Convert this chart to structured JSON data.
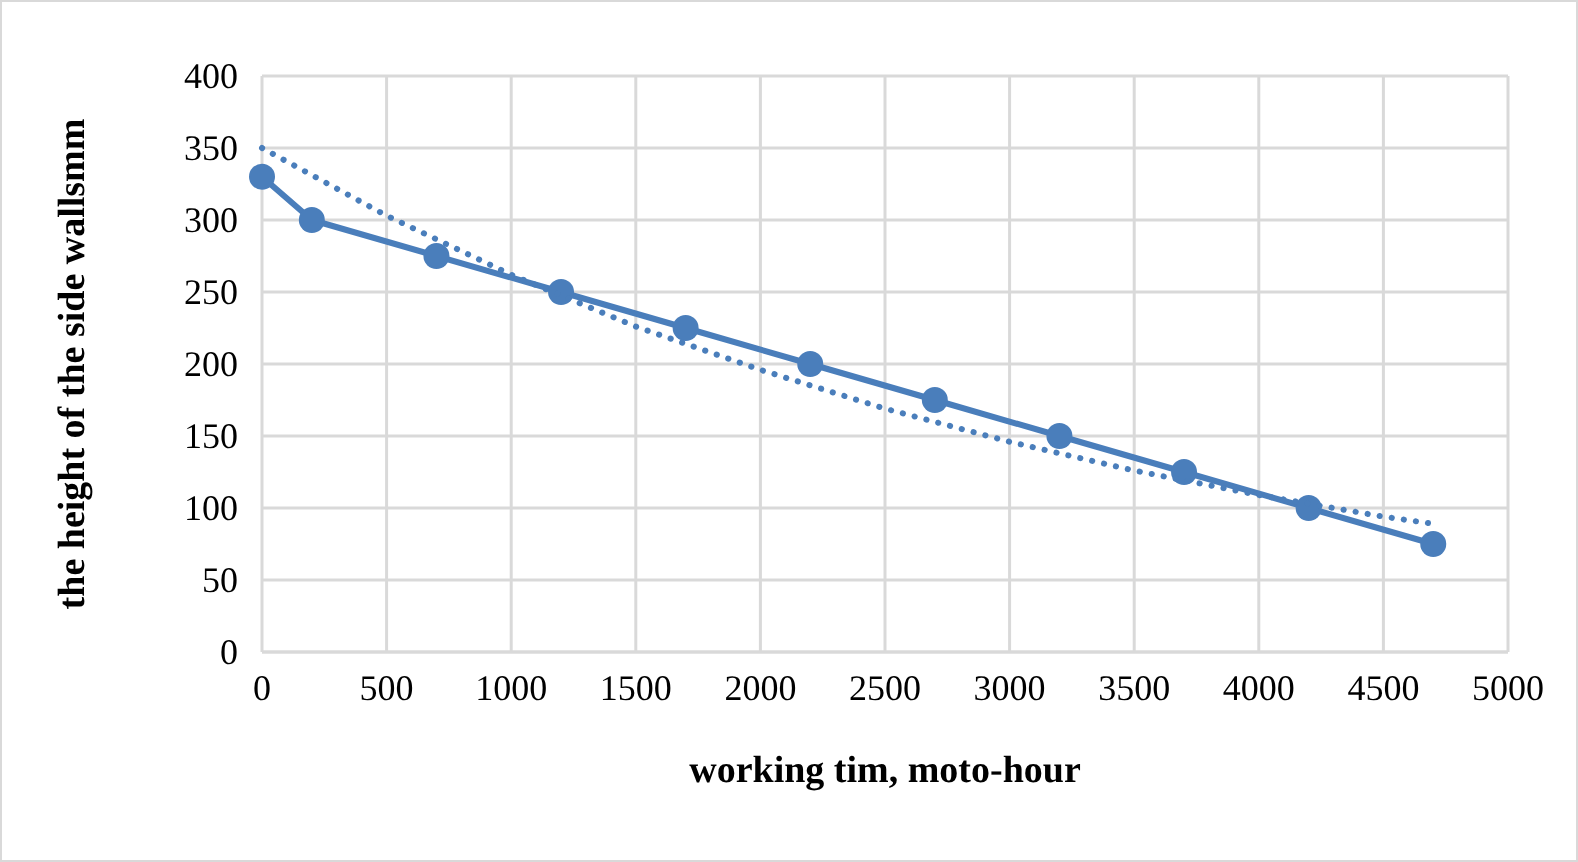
{
  "chart_data": {
    "type": "line",
    "xlabel": "working tim, moto-hour",
    "ylabel": "the height of the side wallsmm",
    "x": [
      0,
      200,
      700,
      1200,
      1700,
      2200,
      2700,
      3200,
      3700,
      4200,
      4700
    ],
    "series": [
      {
        "color": "#4a7ebb",
        "marker": "circle",
        "line_style": "solid",
        "values": [
          330,
          300,
          275,
          250,
          225,
          200,
          175,
          150,
          125,
          100,
          75
        ]
      },
      {
        "color": "#4a7ebb",
        "marker": "none",
        "line_style": "dotted",
        "x": [
          0,
          500,
          1000,
          1500,
          2000,
          2500,
          3000,
          3500,
          4000,
          4500,
          4700
        ],
        "values": [
          350,
          303,
          262,
          226,
          196,
          169,
          146,
          126,
          109,
          94,
          89
        ]
      }
    ],
    "xlim": [
      0,
      5000
    ],
    "xticks": [
      0,
      500,
      1000,
      1500,
      2000,
      2500,
      3000,
      3500,
      4000,
      4500,
      5000
    ],
    "ylim": [
      0,
      400
    ],
    "yticks": [
      0,
      50,
      100,
      150,
      200,
      250,
      300,
      350,
      400
    ],
    "grid": true
  }
}
